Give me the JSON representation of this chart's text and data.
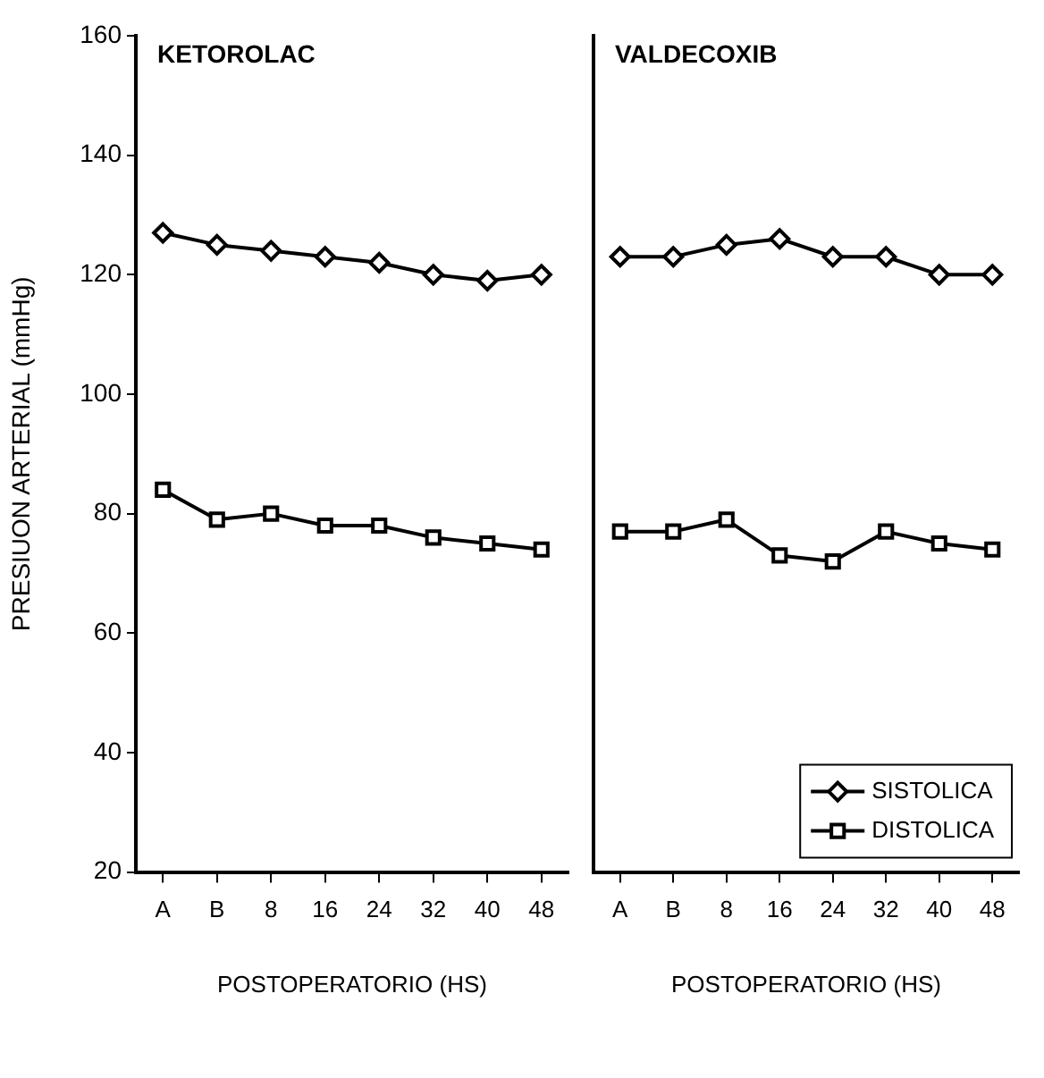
{
  "chart_data": [
    {
      "type": "line",
      "title": "KETOROLAC",
      "xlabel": "POSTOPERATORIO (HS)",
      "ylabel": "PRESIUON ARTERIAL (mmHg)",
      "categories": [
        "A",
        "B",
        "8",
        "16",
        "24",
        "32",
        "40",
        "48"
      ],
      "ylim": [
        20,
        160
      ],
      "yticks": [
        20,
        40,
        60,
        80,
        100,
        120,
        140,
        160
      ],
      "grid": false,
      "legend": false,
      "series": [
        {
          "color": "#000000",
          "marker": "diamond",
          "values": [
            127,
            125,
            124,
            123,
            122,
            120,
            119,
            120
          ]
        },
        {
          "color": "#000000",
          "marker": "square",
          "values": [
            84,
            79,
            80,
            78,
            78,
            76,
            75,
            74
          ]
        }
      ]
    },
    {
      "type": "line",
      "title": "VALDECOXIB",
      "xlabel": "POSTOPERATORIO (HS)",
      "categories": [
        "A",
        "B",
        "8",
        "16",
        "24",
        "32",
        "40",
        "48"
      ],
      "ylim": [
        20,
        160
      ],
      "yticks": [
        20,
        40,
        60,
        80,
        100,
        120,
        140,
        160
      ],
      "tick_labels": "x",
      "grid": false,
      "legend": "bottom right",
      "series": [
        {
          "name": "SISTOLICA",
          "color": "#000000",
          "marker": "diamond",
          "values": [
            123,
            123,
            125,
            126,
            123,
            123,
            120,
            120
          ]
        },
        {
          "name": "DISTOLICA",
          "color": "#000000",
          "marker": "square",
          "values": [
            77,
            77,
            79,
            73,
            72,
            77,
            75,
            74
          ]
        }
      ]
    }
  ]
}
